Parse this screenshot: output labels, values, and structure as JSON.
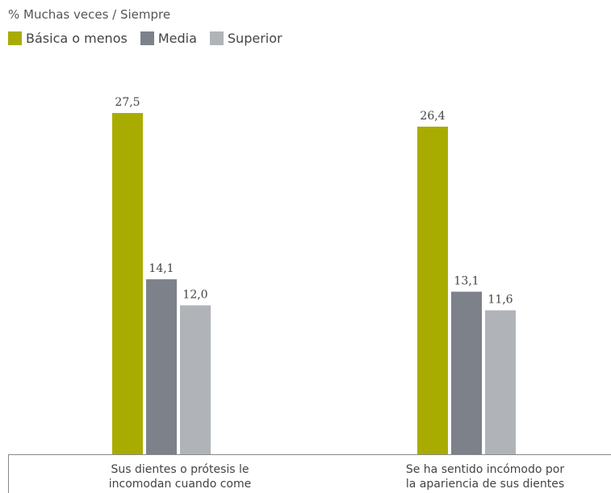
{
  "chart_data": {
    "type": "bar",
    "title": "% Muchas veces / Siempre",
    "categories": [
      "Sus dientes o prótesis le incomodan cuando come",
      "Se ha sentido incómodo por la apariencia de sus dientes"
    ],
    "category_lines": [
      [
        "Sus dientes o prótesis le",
        "incomodan cuando come"
      ],
      [
        "Se ha sentido incómodo por",
        "la apariencia de sus dientes"
      ]
    ],
    "series": [
      {
        "name": "Básica o menos",
        "color": "#a9ac00",
        "values": [
          27.5,
          26.4
        ],
        "labels": [
          "27,5",
          "26,4"
        ]
      },
      {
        "name": "Media",
        "color": "#7d8189",
        "values": [
          14.1,
          13.1
        ],
        "labels": [
          "14,1",
          "13,1"
        ]
      },
      {
        "name": "Superior",
        "color": "#b0b3b8",
        "values": [
          12.0,
          11.6
        ],
        "labels": [
          "12,0",
          "11,6"
        ]
      }
    ],
    "ylim": [
      0,
      30
    ],
    "grid": false,
    "legend_position": "top-left"
  }
}
